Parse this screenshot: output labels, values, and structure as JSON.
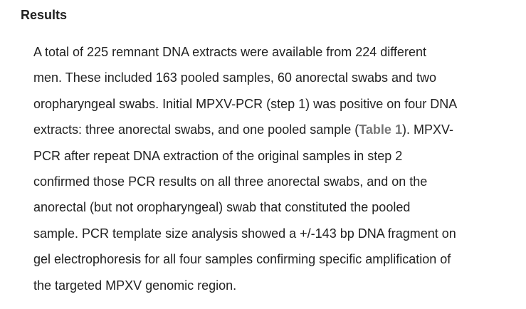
{
  "section": {
    "heading": "Results",
    "lines": [
      "A total of 225 remnant DNA extracts were available from 224 different",
      "men. These included 163 pooled samples, 60 anorectal swabs and two",
      "oropharyngeal swabs. Initial MPXV-PCR (step 1) was positive on four DNA",
      null,
      "PCR after repeat DNA extraction of the original samples in step 2",
      "confirmed those PCR results on all three anorectal swabs, and on the",
      "anorectal (but not oropharyngeal) swab that constituted the pooled",
      "sample. PCR template size analysis showed a +/-143 bp DNA fragment on",
      "gel electrophoresis for all four samples confirming specific amplification of",
      "the targeted MPXV genomic region."
    ],
    "line4": {
      "before": "extracts: three anorectal swabs, and one pooled sample (",
      "link": "Table 1",
      "after": "). MPXV-"
    }
  }
}
